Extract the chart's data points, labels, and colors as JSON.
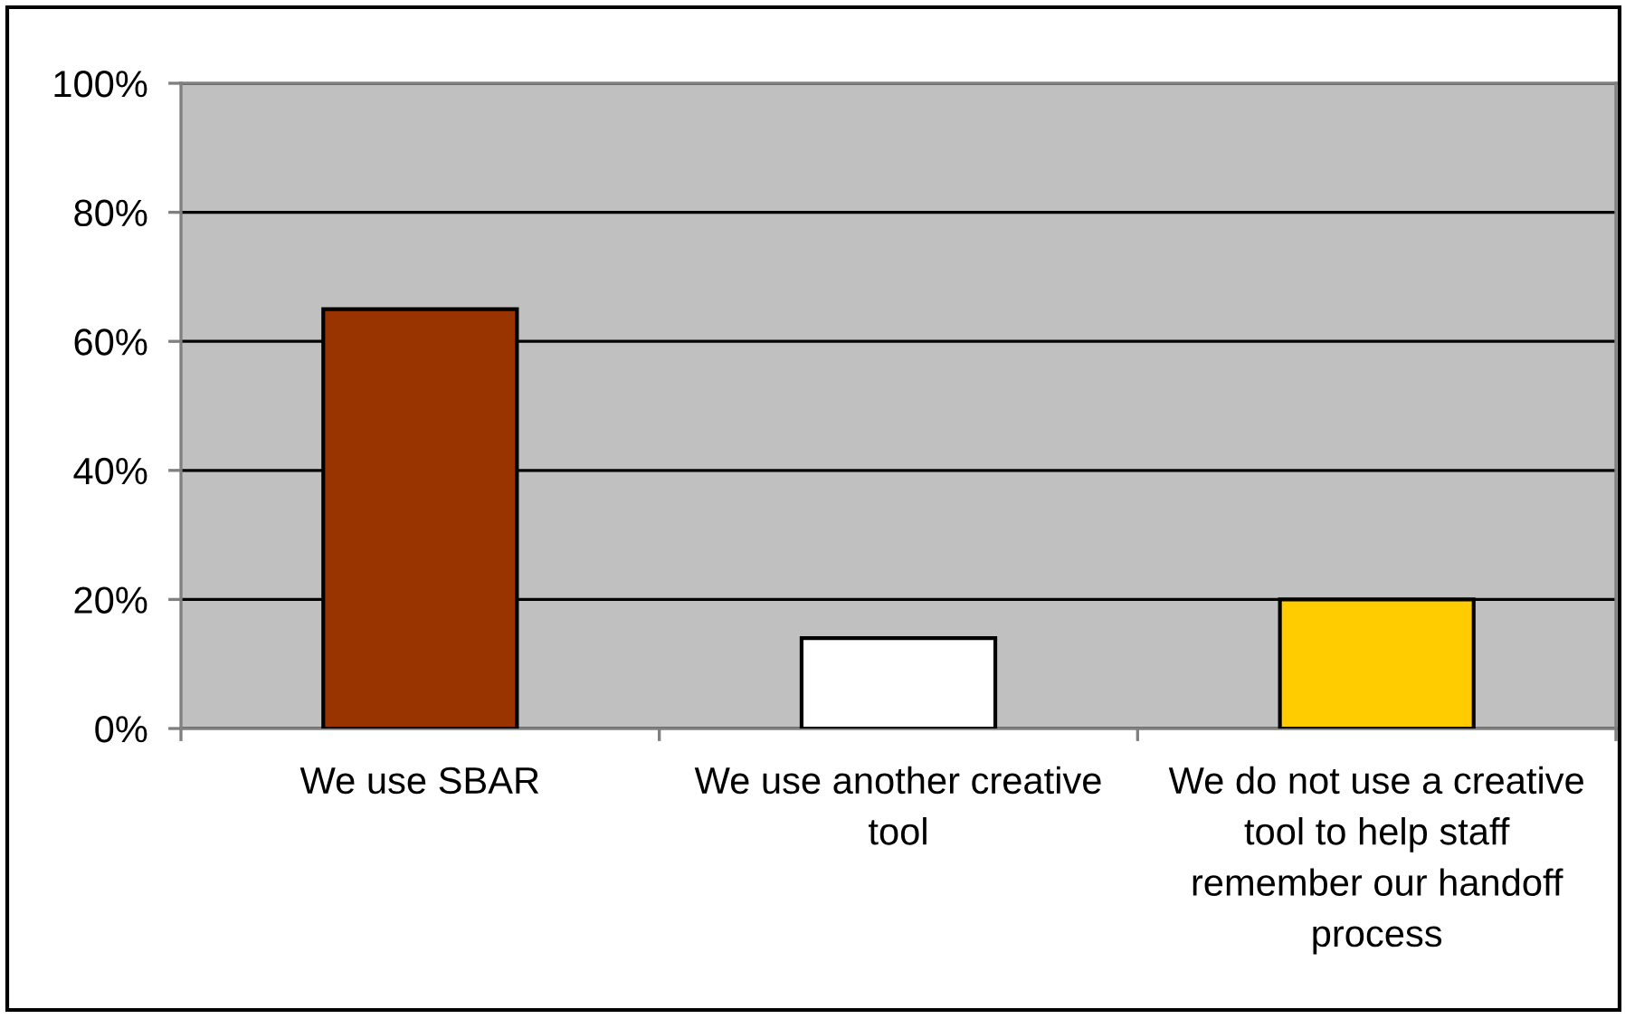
{
  "chart_data": {
    "type": "bar",
    "categories": [
      "We use SBAR",
      "We use another creative tool",
      "We do not use a creative tool to help staff remember our handoff process"
    ],
    "values": [
      65,
      14,
      20
    ],
    "colors": [
      "#993300",
      "#ffffff",
      "#ffcc00"
    ],
    "ylim": [
      0,
      100
    ],
    "yticks": [
      {
        "value": 0,
        "label": "0%"
      },
      {
        "value": 20,
        "label": "20%"
      },
      {
        "value": 40,
        "label": "40%"
      },
      {
        "value": 60,
        "label": "60%"
      },
      {
        "value": 80,
        "label": "80%"
      },
      {
        "value": 100,
        "label": "100%"
      }
    ],
    "grid": "y"
  }
}
